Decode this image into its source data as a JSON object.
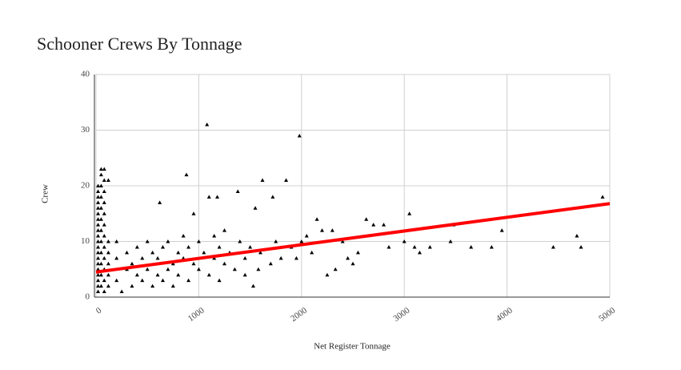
{
  "chart_data": {
    "type": "scatter",
    "title": "Schooner Crews By Tonnage",
    "x_label": "Net Register Tonnage",
    "y_label": "Crew",
    "xlim": [
      0,
      5000
    ],
    "ylim": [
      0,
      40
    ],
    "xticks": [
      0,
      1000,
      2000,
      3000,
      4000,
      5000
    ],
    "yticks": [
      0,
      10,
      20,
      30,
      40
    ],
    "grid": true,
    "marker": "triangle",
    "x": [
      20,
      20,
      20,
      20,
      20,
      20,
      20,
      20,
      20,
      20,
      20,
      20,
      20,
      20,
      20,
      20,
      20,
      20,
      20,
      20,
      50,
      50,
      50,
      50,
      50,
      50,
      50,
      50,
      50,
      50,
      50,
      50,
      80,
      80,
      80,
      80,
      80,
      80,
      80,
      80,
      80,
      80,
      80,
      80,
      120,
      120,
      120,
      120,
      120,
      120,
      200,
      200,
      200,
      250,
      300,
      300,
      350,
      350,
      400,
      400,
      450,
      450,
      500,
      500,
      550,
      550,
      600,
      600,
      620,
      650,
      650,
      700,
      700,
      750,
      750,
      800,
      800,
      850,
      850,
      880,
      900,
      900,
      950,
      950,
      1000,
      1000,
      1050,
      1080,
      1100,
      1100,
      1150,
      1150,
      1180,
      1200,
      1200,
      1250,
      1250,
      1300,
      1350,
      1380,
      1400,
      1450,
      1450,
      1500,
      1530,
      1550,
      1580,
      1600,
      1620,
      1700,
      1720,
      1750,
      1800,
      1850,
      1900,
      1950,
      1980,
      2000,
      2050,
      2100,
      2150,
      2200,
      2250,
      2300,
      2330,
      2400,
      2450,
      2500,
      2550,
      2630,
      2700,
      2800,
      2850,
      3000,
      3050,
      3100,
      3150,
      3250,
      3450,
      3480,
      3650,
      3850,
      3950,
      4450,
      4680,
      4720,
      4930
    ],
    "series": [
      {
        "color": "#000000",
        "values": [
          1,
          2,
          3,
          4,
          5,
          6,
          7,
          8,
          9,
          10,
          11,
          12,
          13,
          14,
          15,
          16,
          17,
          18,
          19,
          20,
          2,
          4,
          6,
          8,
          10,
          12,
          14,
          16,
          18,
          20,
          22,
          23,
          1,
          3,
          5,
          7,
          9,
          11,
          13,
          15,
          17,
          19,
          21,
          23,
          2,
          4,
          6,
          8,
          10,
          21,
          3,
          7,
          10,
          1,
          5,
          8,
          2,
          6,
          4,
          9,
          3,
          7,
          5,
          10,
          2,
          8,
          4,
          7,
          17,
          3,
          9,
          5,
          10,
          2,
          6,
          4,
          8,
          7,
          11,
          22,
          3,
          9,
          6,
          15,
          5,
          10,
          8,
          31,
          4,
          18,
          7,
          11,
          18,
          3,
          9,
          6,
          12,
          8,
          5,
          19,
          10,
          4,
          7,
          9,
          2,
          16,
          5,
          8,
          21,
          6,
          18,
          10,
          7,
          21,
          9,
          7,
          29,
          10,
          11,
          8,
          14,
          12,
          4,
          12,
          5,
          10,
          7,
          6,
          8,
          14,
          13,
          13,
          9,
          10,
          15,
          9,
          8,
          9,
          10,
          13,
          9,
          9,
          12,
          9,
          11,
          9,
          18
        ]
      }
    ],
    "trendline": {
      "color": "#ff0000",
      "x": [
        0,
        5000
      ],
      "values": [
        4.5,
        16.8
      ]
    }
  }
}
